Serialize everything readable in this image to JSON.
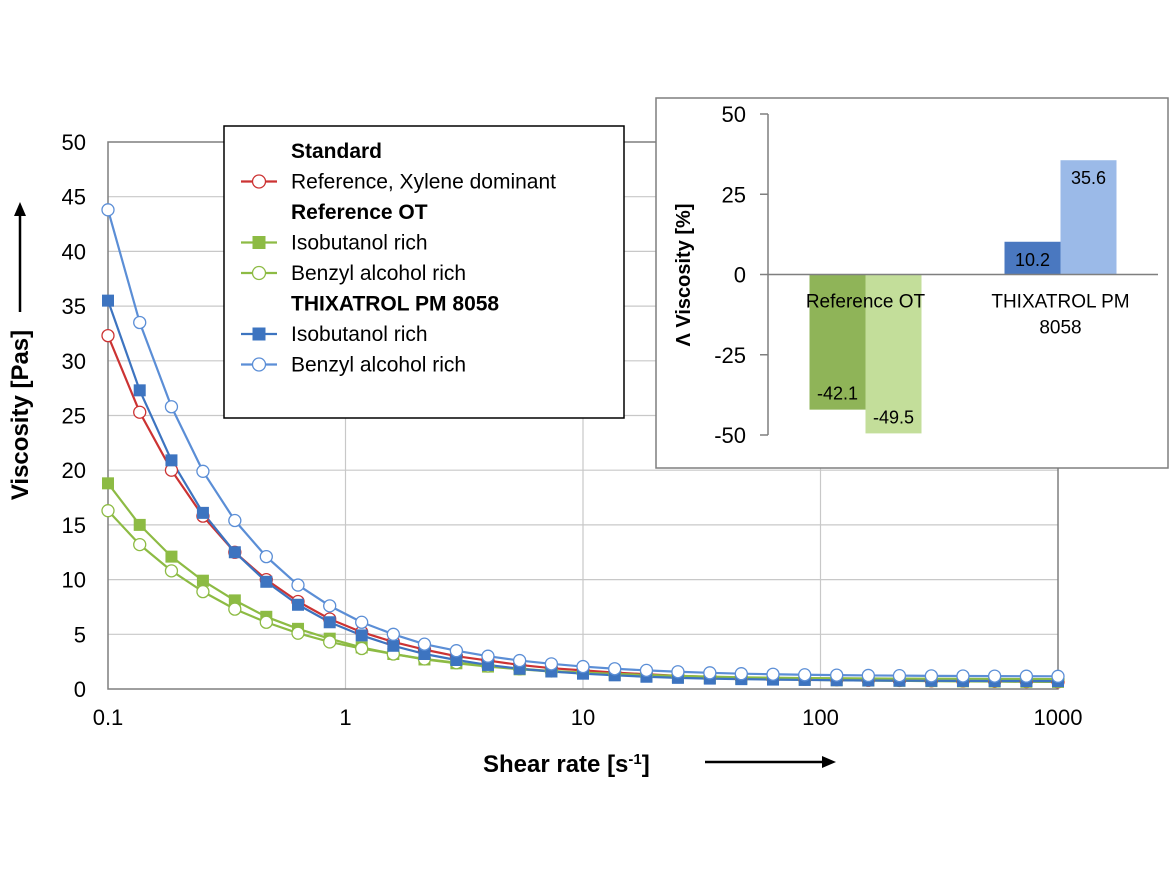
{
  "chart_data": [
    {
      "type": "line",
      "xlabel_main": "Shear rate [s",
      "xlabel_sup": "-1",
      "xlabel_end": "]",
      "ylabel": "Viscosity [Pas]",
      "xscale": "log",
      "xlim": [
        0.1,
        1000
      ],
      "ylim": [
        0,
        50
      ],
      "grid": true,
      "x_ticks": [
        "0.1",
        "1",
        "10",
        "100",
        "1000"
      ],
      "y_ticks": [
        "0",
        "5",
        "10",
        "15",
        "20",
        "25",
        "30",
        "35",
        "40",
        "45",
        "50"
      ],
      "legend_position": "top-center",
      "legend": [
        {
          "kind": "header",
          "text": "Standard"
        },
        {
          "kind": "series",
          "series": 0,
          "text": "Reference, Xylene dominant"
        },
        {
          "kind": "header",
          "text": "Reference OT"
        },
        {
          "kind": "series",
          "series": 1,
          "text": "Isobutanol rich"
        },
        {
          "kind": "series",
          "series": 2,
          "text": "Benzyl alcohol rich"
        },
        {
          "kind": "header",
          "text": "THIXATROL PM 8058"
        },
        {
          "kind": "series",
          "series": 3,
          "text": "Isobutanol rich"
        },
        {
          "kind": "series",
          "series": 4,
          "text": "Benzyl alcohol rich"
        }
      ],
      "x": [
        0.1,
        0.136,
        0.185,
        0.251,
        0.342,
        0.464,
        0.631,
        0.858,
        1.17,
        1.59,
        2.15,
        2.93,
        3.98,
        5.41,
        7.36,
        10.0,
        13.6,
        18.5,
        25.1,
        34.2,
        46.4,
        63.1,
        85.8,
        117,
        159,
        215,
        293,
        398,
        541,
        736,
        1000
      ],
      "series": [
        {
          "color": "#cc3333",
          "marker": "circle-open",
          "values": [
            32.3,
            25.3,
            20.0,
            15.8,
            12.5,
            10.0,
            8.0,
            6.4,
            5.2,
            4.3,
            3.6,
            3.0,
            2.6,
            2.2,
            1.9,
            1.7,
            1.5,
            1.35,
            1.2,
            1.1,
            1.0,
            0.95,
            0.9,
            0.85,
            0.8,
            0.78,
            0.75,
            0.73,
            0.7,
            0.68,
            0.66
          ]
        },
        {
          "color": "#8dbb44",
          "marker": "square-filled",
          "values": [
            18.8,
            15.0,
            12.1,
            9.9,
            8.1,
            6.6,
            5.5,
            4.6,
            3.8,
            3.2,
            2.7,
            2.35,
            2.05,
            1.8,
            1.6,
            1.45,
            1.3,
            1.2,
            1.1,
            1.0,
            0.95,
            0.9,
            0.85,
            0.8,
            0.77,
            0.75,
            0.72,
            0.7,
            0.68,
            0.66,
            0.65
          ]
        },
        {
          "color": "#8dbb44",
          "marker": "circle-open",
          "values": [
            16.3,
            13.2,
            10.8,
            8.9,
            7.3,
            6.1,
            5.1,
            4.3,
            3.7,
            3.2,
            2.75,
            2.4,
            2.1,
            1.85,
            1.65,
            1.5,
            1.38,
            1.28,
            1.2,
            1.13,
            1.07,
            1.03,
            1.0,
            0.98,
            0.96,
            0.95,
            0.94,
            0.93,
            0.92,
            0.92,
            0.91
          ]
        },
        {
          "color": "#3d74c0",
          "marker": "square-filled",
          "values": [
            35.5,
            27.3,
            20.9,
            16.1,
            12.5,
            9.8,
            7.7,
            6.1,
            4.9,
            3.95,
            3.2,
            2.65,
            2.2,
            1.85,
            1.6,
            1.4,
            1.25,
            1.12,
            1.02,
            0.95,
            0.9,
            0.86,
            0.83,
            0.8,
            0.78,
            0.76,
            0.75,
            0.74,
            0.73,
            0.73,
            0.72
          ]
        },
        {
          "color": "#5b8ed6",
          "marker": "circle-open",
          "values": [
            43.8,
            33.5,
            25.8,
            19.9,
            15.4,
            12.1,
            9.5,
            7.6,
            6.1,
            5.0,
            4.1,
            3.5,
            3.0,
            2.6,
            2.3,
            2.05,
            1.85,
            1.7,
            1.58,
            1.48,
            1.4,
            1.35,
            1.3,
            1.27,
            1.24,
            1.22,
            1.2,
            1.19,
            1.18,
            1.17,
            1.16
          ]
        }
      ]
    },
    {
      "type": "bar",
      "ylabel": "Λ Viscosity [%]",
      "ylim": [
        -50,
        50
      ],
      "y_ticks": [
        "-50",
        "-25",
        "0",
        "25",
        "50"
      ],
      "categories": [
        "Reference OT",
        "THIXATROL PM 8058"
      ],
      "category_lines": [
        [
          "Reference OT"
        ],
        [
          "THIXATROL PM",
          "8058"
        ]
      ],
      "groups": [
        {
          "category": 0,
          "bars": [
            {
              "value": -42.1,
              "label": "-42.1",
              "color": "#8fb458"
            },
            {
              "value": -49.5,
              "label": "-49.5",
              "color": "#c3de9a"
            }
          ]
        },
        {
          "category": 1,
          "bars": [
            {
              "value": 10.2,
              "label": "10.2",
              "color": "#4a78c0"
            },
            {
              "value": 35.6,
              "label": "35.6",
              "color": "#9bbae8"
            }
          ]
        }
      ]
    }
  ]
}
